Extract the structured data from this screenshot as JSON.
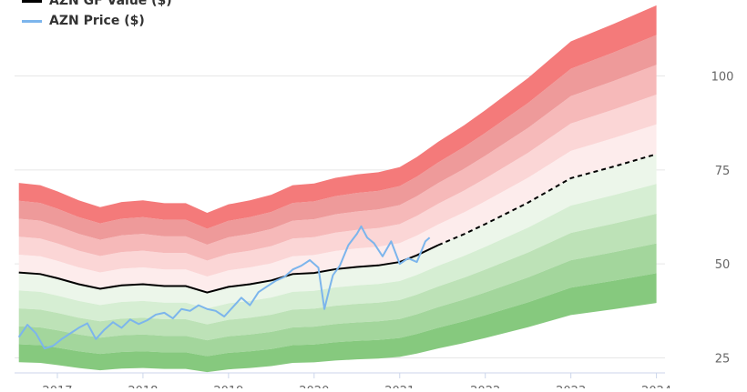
{
  "chart_data": {
    "type": "area",
    "title": "",
    "xlabel": "",
    "ylabel": "",
    "xlim": [
      2016.5,
      2024.1
    ],
    "ylim": [
      21,
      119
    ],
    "y_ticks": [
      25,
      50,
      75,
      100
    ],
    "x_ticks": [
      2017,
      2018,
      2019,
      2020,
      2021,
      2022,
      2023,
      2024
    ],
    "x_tick_labels": [
      "2017",
      "2018",
      "2019",
      "2020",
      "2021",
      "2022",
      "2023",
      "2024"
    ],
    "grid": true,
    "legend": "top-left",
    "series": [
      {
        "name": "AZN GF Value ($)",
        "color": "#000000",
        "x": [
          2016.55,
          2016.8,
          2017.0,
          2017.25,
          2017.5,
          2017.75,
          2018.0,
          2018.25,
          2018.5,
          2018.75,
          2019.0,
          2019.25,
          2019.5,
          2019.75,
          2020.0,
          2020.25,
          2020.5,
          2020.75,
          2021.0,
          2021.2,
          2021.45
        ],
        "values": [
          47.7,
          47.3,
          46.2,
          44.6,
          43.4,
          44.3,
          44.6,
          44.1,
          44.1,
          42.4,
          43.9,
          44.6,
          45.6,
          47.3,
          47.6,
          48.6,
          49.2,
          49.6,
          50.5,
          52.3,
          55.0
        ],
        "forecast_x": [
          2021.45,
          2021.75,
          2022.0,
          2022.5,
          2023.0,
          2023.5,
          2024.0
        ],
        "forecast_values": [
          55.0,
          57.9,
          60.6,
          66.3,
          72.8,
          75.9,
          79.2
        ]
      },
      {
        "name": "AZN Price ($)",
        "color": "#7cb5ec",
        "x": [
          2016.55,
          2016.65,
          2016.75,
          2016.85,
          2016.95,
          2017.05,
          2017.15,
          2017.25,
          2017.35,
          2017.45,
          2017.55,
          2017.65,
          2017.75,
          2017.85,
          2017.95,
          2018.05,
          2018.15,
          2018.25,
          2018.35,
          2018.45,
          2018.55,
          2018.65,
          2018.75,
          2018.85,
          2018.95,
          2019.05,
          2019.15,
          2019.25,
          2019.35,
          2019.45,
          2019.55,
          2019.65,
          2019.75,
          2019.85,
          2019.95,
          2020.05,
          2020.12,
          2020.18,
          2020.22,
          2020.3,
          2020.4,
          2020.5,
          2020.55,
          2020.62,
          2020.7,
          2020.8,
          2020.9,
          2021.0,
          2021.1,
          2021.2,
          2021.3,
          2021.35
        ],
        "values": [
          30.5,
          33.8,
          31.5,
          27.5,
          28.2,
          30.0,
          31.5,
          33.0,
          34.2,
          30.0,
          32.5,
          34.5,
          33.0,
          35.2,
          34.0,
          35.0,
          36.5,
          37.0,
          35.5,
          38.0,
          37.5,
          39.0,
          38.0,
          37.5,
          36.0,
          38.5,
          41.0,
          39.0,
          42.5,
          44.0,
          45.5,
          46.5,
          48.5,
          49.5,
          51.0,
          49.0,
          38.0,
          43.5,
          47.0,
          49.5,
          55.0,
          58.0,
          60.0,
          57.0,
          55.5,
          52.0,
          56.0,
          50.0,
          51.5,
          50.5,
          56.0,
          57.0
        ]
      }
    ],
    "bands": {
      "x": [
        2016.55,
        2016.8,
        2017.0,
        2017.25,
        2017.5,
        2017.75,
        2018.0,
        2018.25,
        2018.5,
        2018.75,
        2019.0,
        2019.25,
        2019.5,
        2019.75,
        2020.0,
        2020.25,
        2020.5,
        2020.75,
        2021.0,
        2021.2,
        2021.45,
        2021.75,
        2022.0,
        2022.5,
        2023.0,
        2023.5,
        2024.0
      ],
      "upper_multipliers": [
        1.1,
        1.2,
        1.3,
        1.4,
        1.5
      ],
      "lower_multipliers": [
        0.9,
        0.8,
        0.7,
        0.6,
        0.5
      ],
      "upper_colors": [
        "#fdecec",
        "#fbd6d6",
        "#f6b9b9",
        "#ee9a9a",
        "#f47a7a"
      ],
      "lower_colors": [
        "#ecf6ea",
        "#d6eed3",
        "#bde2b7",
        "#a3d69c",
        "#86c97e"
      ]
    }
  }
}
